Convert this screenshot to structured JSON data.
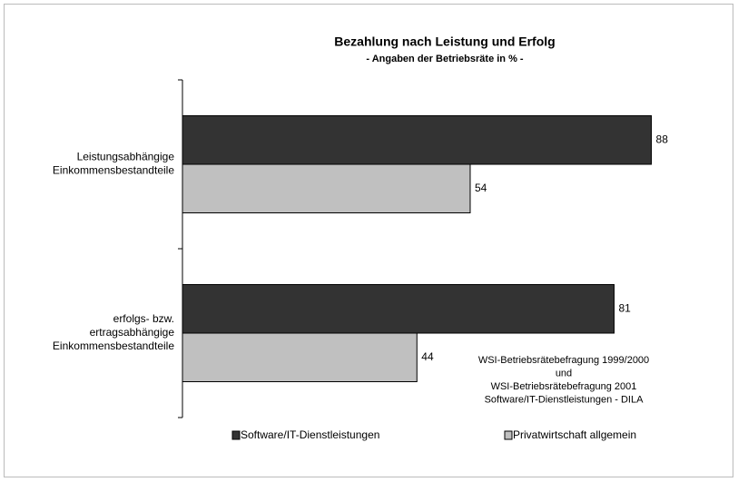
{
  "chart_data": {
    "type": "bar",
    "orientation": "horizontal",
    "title": "Bezahlung nach Leistung und Erfolg",
    "subtitle": "- Angaben der Betriebsräte in % -",
    "categories": [
      [
        "Leistungsabhängige",
        "Einkommensbestandteile"
      ],
      [
        "erfolgs- bzw.",
        "ertragsabhängige",
        "Einkommensbestandteile"
      ]
    ],
    "series": [
      {
        "name": "Software/IT-Dienstleistungen",
        "color": "#333333",
        "values": [
          88,
          81
        ]
      },
      {
        "name": "Privatwirtschaft allgemein",
        "color": "#c0c0c0",
        "values": [
          54,
          44
        ]
      }
    ],
    "xlim": [
      0,
      100
    ],
    "annotation": [
      "WSI-Betriebsrätebefragung 1999/2000",
      "und",
      "WSI-Betriebsrätebefragung 2001",
      "Software/IT-Dienstleistungen - DILA"
    ],
    "legend": "bottom"
  }
}
